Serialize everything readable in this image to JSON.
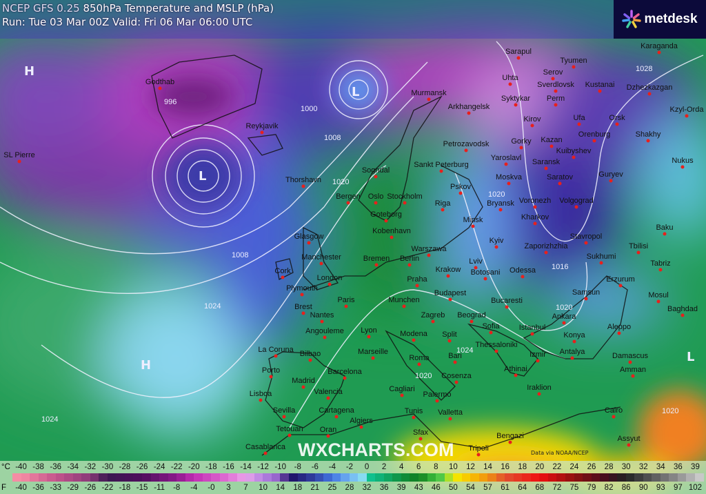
{
  "header": {
    "model": "NCEP GFS 0.25",
    "product": "850hPa Temperature and MSLP (hPa)",
    "run_line": "Run: Tue 03 Mar 00Z Valid: Fri 06 Mar 06:00 UTC"
  },
  "logo": {
    "text": "metdesk",
    "icon": "asterisk-burst-icon"
  },
  "watermark": "WXCHARTS.COM",
  "credit": "Data via NOAA/NCEP",
  "pressure_centres": [
    "H",
    "L",
    "L",
    "H",
    "L"
  ],
  "isobar_labels": [
    "996",
    "1000",
    "1008",
    "1020",
    "1028",
    "1020",
    "1016",
    "1020",
    "1024",
    "1024",
    "1008",
    "1024",
    "1020",
    "1020"
  ],
  "cities": [
    "Godthab",
    "Reykjavik",
    "SL Pierre",
    "Thorshavn",
    "Sogndal",
    "Bergen",
    "Oslo",
    "Stockholm",
    "Goteborg",
    "Kobenhavn",
    "Glasgow",
    "Manchester",
    "Cork",
    "London",
    "Plymouth",
    "Brest",
    "Nantes",
    "Paris",
    "Bremen",
    "Berlin",
    "Praha",
    "Munchen",
    "Warszawa",
    "Krakow",
    "Lviv",
    "Riga",
    "Minsk",
    "Pskov",
    "Sankt Peterburg",
    "Petrozavodsk",
    "Arkhangelsk",
    "Murmansk",
    "Moskva",
    "Yaroslavl",
    "Gorky",
    "Kazan",
    "Kirov",
    "Syktykar",
    "Uhta",
    "Sarapul",
    "Serov",
    "Tyumen",
    "Sverdlovsk",
    "Kustanai",
    "Karaganda",
    "Dzhezkazgan",
    "Kzyl-Orda",
    "Perm",
    "Ufa",
    "Orenburg",
    "Orsk",
    "Shakhy",
    "Kuibyshev",
    "Saransk",
    "Saratov",
    "Guryev",
    "Nukus",
    "Bryansk",
    "Voronezh",
    "Volgograd",
    "Kharkov",
    "Kyiv",
    "Zaporizhzhia",
    "Stavropol",
    "Baku",
    "Tbilisi",
    "Sukhumi",
    "Tabriz",
    "Erzurum",
    "Mosul",
    "Baghdad",
    "Samsun",
    "Botosani",
    "Odessa",
    "Bucaresti",
    "Budapest",
    "Zagreb",
    "Beograd",
    "Sofia",
    "Istanbul",
    "Ankara",
    "Konya",
    "Antalya",
    "Aleppo",
    "Damascus",
    "Amman",
    "Izmir",
    "Thessaloniki",
    "Split",
    "Modena",
    "Lyon",
    "Angouleme",
    "Marseille",
    "Bilbao",
    "La Coruna",
    "Porto",
    "Madrid",
    "Barcelona",
    "Valencia",
    "Lisboa",
    "Sevilla",
    "Cartagena",
    "Algiers",
    "Tetouan",
    "Oran",
    "Casablanca",
    "Roma",
    "Bari",
    "Cosenza",
    "Cagliari",
    "Palermo",
    "Tunis",
    "Valletta",
    "Sfax",
    "Tripoli",
    "Bengazi",
    "Athinai",
    "Iraklion",
    "Cairo",
    "Assyut"
  ],
  "legend": {
    "celsius_unit": "°C",
    "fahrenheit_unit": "F",
    "celsius": [
      "-40",
      "-38",
      "-36",
      "-34",
      "-32",
      "-30",
      "-28",
      "-26",
      "-24",
      "-22",
      "-20",
      "-18",
      "-16",
      "-14",
      "-12",
      "-10",
      "-8",
      "-6",
      "-4",
      "-2",
      "0",
      "2",
      "4",
      "6",
      "8",
      "10",
      "12",
      "14",
      "16",
      "18",
      "20",
      "22",
      "24",
      "26",
      "28",
      "30",
      "32",
      "34",
      "36",
      "39"
    ],
    "fahrenheit": [
      "-40",
      "-36",
      "-33",
      "-29",
      "-26",
      "-22",
      "-18",
      "-15",
      "-11",
      "-8",
      "-4",
      "-0",
      "3",
      "7",
      "10",
      "14",
      "18",
      "21",
      "25",
      "28",
      "32",
      "36",
      "39",
      "43",
      "46",
      "50",
      "54",
      "57",
      "61",
      "64",
      "68",
      "72",
      "75",
      "79",
      "82",
      "86",
      "90",
      "93",
      "97",
      "102"
    ],
    "color_stops": [
      [
        "-40",
        "#f58ca4"
      ],
      [
        "-36",
        "#c4548c"
      ],
      [
        "-32",
        "#8a3a78"
      ],
      [
        "-30",
        "#3a1850"
      ],
      [
        "-26",
        "#4e0f5c"
      ],
      [
        "-22",
        "#8c1a8c"
      ],
      [
        "-20",
        "#c22eb4"
      ],
      [
        "-16",
        "#e070d4"
      ],
      [
        "-14",
        "#eaa4ea"
      ],
      [
        "-12",
        "#b482e2"
      ],
      [
        "-10",
        "#8e5ec6"
      ],
      [
        "-9",
        "#1e0e62"
      ],
      [
        "-6",
        "#3242a4"
      ],
      [
        "-4",
        "#4274e2"
      ],
      [
        "-2",
        "#72b2f2"
      ],
      [
        "0",
        "#8ee8f0"
      ],
      [
        "0.5",
        "#10c08e"
      ],
      [
        "4",
        "#0e9040"
      ],
      [
        "6",
        "#107e20"
      ],
      [
        "8",
        "#3ec03e"
      ],
      [
        "9",
        "#62d050"
      ],
      [
        "10",
        "#f4f000"
      ],
      [
        "12",
        "#f8c000"
      ],
      [
        "14",
        "#f09210"
      ],
      [
        "16",
        "#e05030"
      ],
      [
        "20",
        "#f01010"
      ],
      [
        "24",
        "#8e1010"
      ],
      [
        "28",
        "#3e0e20"
      ],
      [
        "30",
        "#222222"
      ],
      [
        "36",
        "#8e8e8e"
      ],
      [
        "39",
        "#d4d4d4"
      ]
    ]
  }
}
